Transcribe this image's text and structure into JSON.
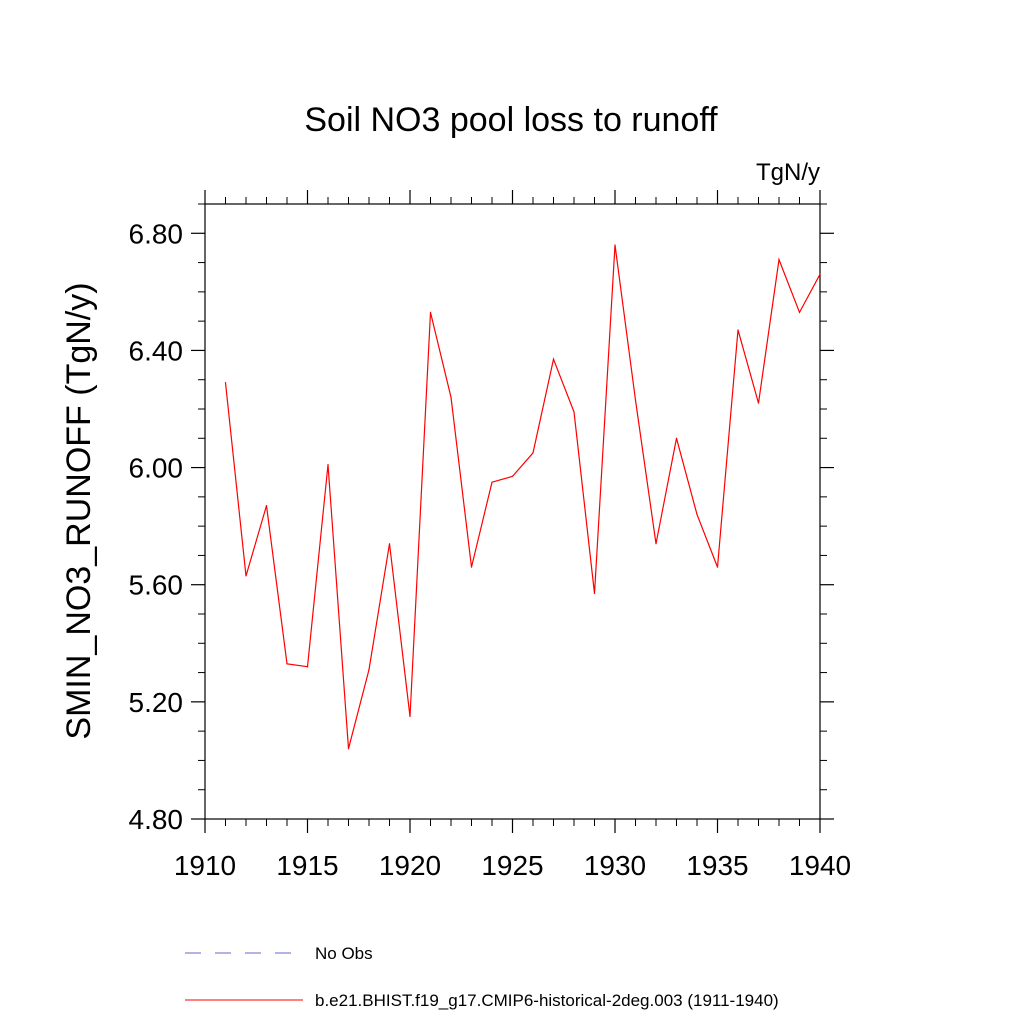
{
  "chart_data": {
    "type": "line",
    "title": "Soil NO3 pool loss to runoff",
    "units_label": "TgN/y",
    "ylabel": "SMIN_NO3_RUNOFF  (TgN/y)",
    "xlabel": "",
    "xlim": [
      1910,
      1940
    ],
    "ylim": [
      4.8,
      6.9
    ],
    "x_ticks": [
      1910,
      1915,
      1920,
      1925,
      1930,
      1935,
      1940
    ],
    "x_tick_labels": [
      "1910",
      "1915",
      "1920",
      "1925",
      "1930",
      "1935",
      "1940"
    ],
    "y_ticks": [
      4.8,
      5.2,
      5.6,
      6.0,
      6.4,
      6.8
    ],
    "y_tick_labels": [
      "4.80",
      "5.20",
      "5.60",
      "6.00",
      "6.40",
      "6.80"
    ],
    "grid": false,
    "legend_position": "bottom",
    "series": [
      {
        "name": "No Obs",
        "color": "#6666cc",
        "dash": "dashed",
        "x": [],
        "values": []
      },
      {
        "name": "b.e21.BHIST.f19_g17.CMIP6-historical-2deg.003 (1911-1940)",
        "color": "#ff0000",
        "dash": "solid",
        "x": [
          1911,
          1912,
          1913,
          1914,
          1915,
          1916,
          1917,
          1918,
          1919,
          1920,
          1921,
          1922,
          1923,
          1924,
          1925,
          1926,
          1927,
          1928,
          1929,
          1930,
          1931,
          1932,
          1933,
          1934,
          1935,
          1936,
          1937,
          1938,
          1939,
          1940
        ],
        "values": [
          6.29,
          5.63,
          5.87,
          5.33,
          5.32,
          6.01,
          5.04,
          5.31,
          5.74,
          5.15,
          6.53,
          6.24,
          5.66,
          5.95,
          5.97,
          6.05,
          6.37,
          6.19,
          5.57,
          6.76,
          6.23,
          5.74,
          6.1,
          5.84,
          5.66,
          6.47,
          6.22,
          6.71,
          6.53,
          6.66
        ]
      }
    ]
  }
}
